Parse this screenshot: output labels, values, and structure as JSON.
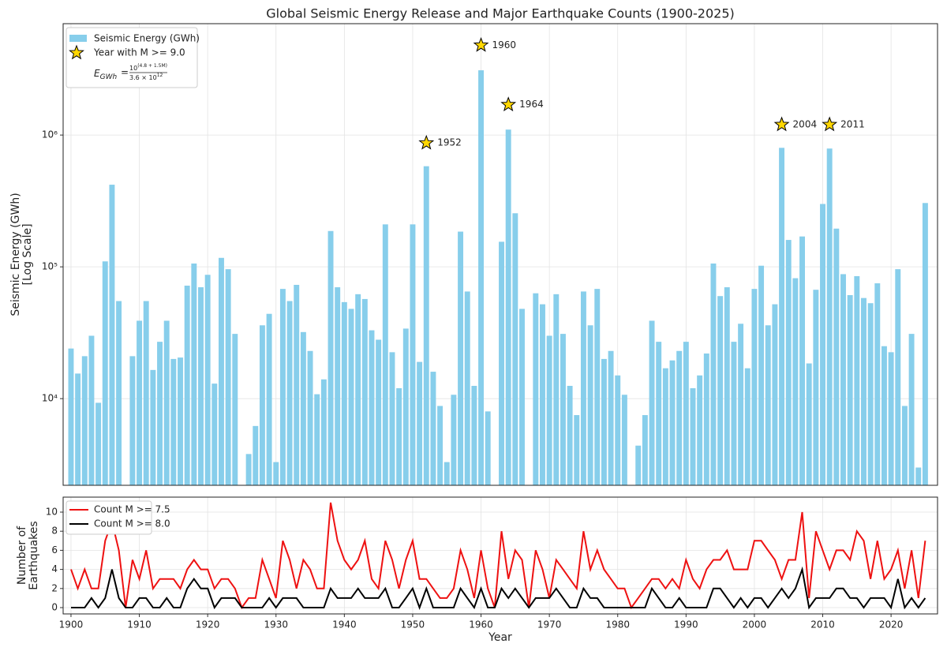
{
  "chart_data": [
    {
      "type": "bar",
      "title": "Global Seismic Energy Release and Major Earthquake Counts (1900-2025)",
      "ylabel": [
        "Seismic Energy (GWh)",
        "[Log Scale]"
      ],
      "log_y": true,
      "grid": true,
      "legend": "upper left",
      "xlim": [
        1898.85,
        2026.8
      ],
      "ylim": [
        2200,
        7000000
      ],
      "yticks": [
        {
          "value": 10000,
          "label": "10⁴"
        },
        {
          "value": 100000,
          "label": "10⁵"
        },
        {
          "value": 1000000,
          "label": "10⁶"
        }
      ],
      "x": [
        1900,
        1901,
        1902,
        1903,
        1904,
        1905,
        1906,
        1907,
        1908,
        1909,
        1910,
        1911,
        1912,
        1913,
        1914,
        1915,
        1916,
        1917,
        1918,
        1919,
        1920,
        1921,
        1922,
        1923,
        1924,
        1925,
        1926,
        1927,
        1928,
        1929,
        1930,
        1931,
        1932,
        1933,
        1934,
        1935,
        1936,
        1937,
        1938,
        1939,
        1940,
        1941,
        1942,
        1943,
        1944,
        1945,
        1946,
        1947,
        1948,
        1949,
        1950,
        1951,
        1952,
        1953,
        1954,
        1955,
        1956,
        1957,
        1958,
        1959,
        1960,
        1961,
        1962,
        1963,
        1964,
        1965,
        1966,
        1967,
        1968,
        1969,
        1970,
        1971,
        1972,
        1973,
        1974,
        1975,
        1976,
        1977,
        1978,
        1979,
        1980,
        1981,
        1982,
        1983,
        1984,
        1985,
        1986,
        1987,
        1988,
        1989,
        1990,
        1991,
        1992,
        1993,
        1994,
        1995,
        1996,
        1997,
        1998,
        1999,
        2000,
        2001,
        2002,
        2003,
        2004,
        2005,
        2006,
        2007,
        2008,
        2009,
        2010,
        2011,
        2012,
        2013,
        2014,
        2015,
        2016,
        2017,
        2018,
        2019,
        2020,
        2021,
        2022,
        2023,
        2024,
        2025
      ],
      "series": [
        {
          "name": "Seismic Energy (GWh)",
          "color": "#87ceeb",
          "values": [
            24000,
            15500,
            21000,
            30000,
            9300,
            110000,
            420000,
            55000,
            null,
            21000,
            39000,
            55000,
            16500,
            27000,
            39000,
            20000,
            20500,
            72000,
            106000,
            70000,
            87000,
            13000,
            117000,
            96000,
            31000,
            null,
            3800,
            6200,
            36000,
            44000,
            3300,
            68000,
            55000,
            73000,
            32000,
            23000,
            10800,
            14000,
            187000,
            70000,
            54000,
            48000,
            62000,
            57000,
            33000,
            28000,
            210000,
            22500,
            12000,
            34000,
            210000,
            19000,
            580000,
            16000,
            8800,
            3300,
            10700,
            185000,
            65000,
            12500,
            3100000,
            8000,
            null,
            155000,
            1100000,
            255000,
            48000,
            null,
            63000,
            52000,
            30000,
            62000,
            31000,
            12500,
            7500,
            65000,
            36000,
            68000,
            20000,
            23000,
            15000,
            10700,
            null,
            4400,
            7500,
            39000,
            27000,
            17000,
            19500,
            23000,
            27000,
            12000,
            15000,
            22000,
            106000,
            60000,
            70000,
            27000,
            37000,
            17000,
            68000,
            102000,
            36000,
            52000,
            800000,
            160000,
            82000,
            170000,
            18500,
            67000,
            300000,
            790000,
            195000,
            88000,
            61000,
            85000,
            58000,
            53000,
            75000,
            25000,
            22500,
            96000,
            8800,
            31000,
            3000,
            305000
          ]
        }
      ],
      "stars": {
        "name": "Year with M >= 9.0",
        "color": "#ffd700",
        "points": [
          {
            "year": 1952,
            "value": 870000
          },
          {
            "year": 1960,
            "value": 4800000
          },
          {
            "year": 1964,
            "value": 1700000
          },
          {
            "year": 2004,
            "value": 1200000
          },
          {
            "year": 2011,
            "value": 1200000
          }
        ]
      },
      "formula": {
        "lhs": "E",
        "lhs_sub": "GWh",
        "eq": "=",
        "numerator": "10",
        "numerator_exp": "(4.8 + 1.5M)",
        "denominator": "3.6 × 10",
        "denominator_exp": "12"
      }
    },
    {
      "type": "line",
      "xlabel": "Year",
      "ylabel": [
        "Number of",
        "Earthquakes"
      ],
      "grid": true,
      "legend": "upper left",
      "xlim": [
        1898.85,
        2026.8
      ],
      "ylim": [
        -0.66,
        11.57
      ],
      "xticks": [
        1900,
        1910,
        1920,
        1930,
        1940,
        1950,
        1960,
        1970,
        1980,
        1990,
        2000,
        2010,
        2020
      ],
      "yticks": [
        0,
        2,
        4,
        6,
        8,
        10
      ],
      "x": [
        1900,
        1901,
        1902,
        1903,
        1904,
        1905,
        1906,
        1907,
        1908,
        1909,
        1910,
        1911,
        1912,
        1913,
        1914,
        1915,
        1916,
        1917,
        1918,
        1919,
        1920,
        1921,
        1922,
        1923,
        1924,
        1925,
        1926,
        1927,
        1928,
        1929,
        1930,
        1931,
        1932,
        1933,
        1934,
        1935,
        1936,
        1937,
        1938,
        1939,
        1940,
        1941,
        1942,
        1943,
        1944,
        1945,
        1946,
        1947,
        1948,
        1949,
        1950,
        1951,
        1952,
        1953,
        1954,
        1955,
        1956,
        1957,
        1958,
        1959,
        1960,
        1961,
        1962,
        1963,
        1964,
        1965,
        1966,
        1967,
        1968,
        1969,
        1970,
        1971,
        1972,
        1973,
        1974,
        1975,
        1976,
        1977,
        1978,
        1979,
        1980,
        1981,
        1982,
        1983,
        1984,
        1985,
        1986,
        1987,
        1988,
        1989,
        1990,
        1991,
        1992,
        1993,
        1994,
        1995,
        1996,
        1997,
        1998,
        1999,
        2000,
        2001,
        2002,
        2003,
        2004,
        2005,
        2006,
        2007,
        2008,
        2009,
        2010,
        2011,
        2012,
        2013,
        2014,
        2015,
        2016,
        2017,
        2018,
        2019,
        2020,
        2021,
        2022,
        2023,
        2024,
        2025
      ],
      "series": [
        {
          "name": "Count M >= 7.5",
          "color": "#ee1111",
          "values": [
            4,
            2,
            4,
            2,
            2,
            7,
            9,
            6,
            0,
            5,
            3,
            6,
            2,
            3,
            3,
            3,
            2,
            4,
            5,
            4,
            4,
            2,
            3,
            3,
            2,
            0,
            1,
            1,
            5,
            3,
            1,
            7,
            5,
            2,
            5,
            4,
            2,
            2,
            11,
            7,
            5,
            4,
            5,
            7,
            3,
            2,
            7,
            5,
            2,
            5,
            7,
            3,
            3,
            2,
            1,
            1,
            2,
            6,
            4,
            1,
            6,
            2,
            0,
            8,
            3,
            6,
            5,
            0,
            6,
            4,
            1,
            5,
            4,
            3,
            2,
            8,
            4,
            6,
            4,
            3,
            2,
            2,
            0,
            1,
            2,
            3,
            3,
            2,
            3,
            2,
            5,
            3,
            2,
            4,
            5,
            5,
            6,
            4,
            4,
            4,
            7,
            7,
            6,
            5,
            3,
            5,
            5,
            10,
            1,
            8,
            6,
            4,
            6,
            6,
            5,
            8,
            7,
            3,
            7,
            3,
            4,
            6,
            2,
            6,
            1,
            7
          ]
        },
        {
          "name": "Count M >= 8.0",
          "color": "#000000",
          "values": [
            0,
            0,
            0,
            1,
            0,
            1,
            4,
            1,
            0,
            0,
            1,
            1,
            0,
            0,
            1,
            0,
            0,
            2,
            3,
            2,
            2,
            0,
            1,
            1,
            1,
            0,
            0,
            0,
            0,
            1,
            0,
            1,
            1,
            1,
            0,
            0,
            0,
            0,
            2,
            1,
            1,
            1,
            2,
            1,
            1,
            1,
            2,
            0,
            0,
            1,
            2,
            0,
            2,
            0,
            0,
            0,
            0,
            2,
            1,
            0,
            2,
            0,
            0,
            2,
            1,
            2,
            1,
            0,
            1,
            1,
            1,
            2,
            1,
            0,
            0,
            2,
            1,
            1,
            0,
            0,
            0,
            0,
            0,
            0,
            0,
            2,
            1,
            0,
            0,
            1,
            0,
            0,
            0,
            0,
            2,
            2,
            1,
            0,
            1,
            0,
            1,
            1,
            0,
            1,
            2,
            1,
            2,
            4,
            0,
            1,
            1,
            1,
            2,
            2,
            1,
            1,
            0,
            1,
            1,
            1,
            0,
            3,
            0,
            1,
            0,
            1
          ]
        }
      ]
    }
  ]
}
